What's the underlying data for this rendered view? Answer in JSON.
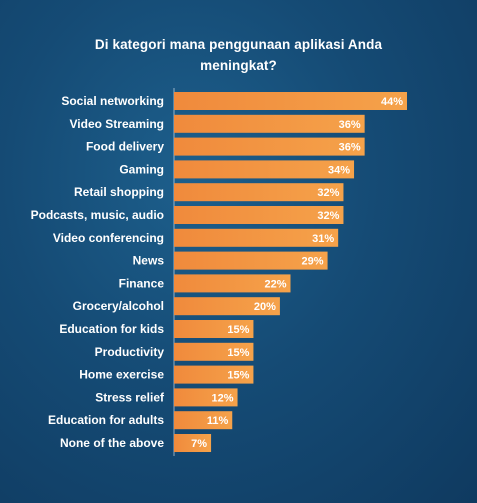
{
  "chart_data": {
    "type": "bar",
    "orientation": "horizontal",
    "title_lines": [
      "Di kategori mana penggunaan aplikasi Anda",
      "meningkat?"
    ],
    "categories": [
      "Social networking",
      "Video Streaming",
      "Food delivery",
      "Gaming",
      "Retail shopping",
      "Podcasts, music, audio",
      "Video conferencing",
      "News",
      "Finance",
      "Grocery/alcohol",
      "Education for kids",
      "Productivity",
      "Home exercise",
      "Stress relief",
      "Education for adults",
      "None of the above"
    ],
    "values": [
      44,
      36,
      36,
      34,
      32,
      32,
      31,
      29,
      22,
      20,
      15,
      15,
      15,
      12,
      11,
      7
    ],
    "value_labels": [
      "44%",
      "36%",
      "36%",
      "34%",
      "32%",
      "32%",
      "31%",
      "29%",
      "22%",
      "20%",
      "15%",
      "15%",
      "15%",
      "12%",
      "11%",
      "7%"
    ],
    "xlim": [
      0,
      44
    ],
    "grid": false,
    "legend": "none",
    "colors": {
      "bar_start": "#f08a3c",
      "bar_end": "#f5a24a",
      "background": "#154b75",
      "text": "#ffffff"
    }
  }
}
